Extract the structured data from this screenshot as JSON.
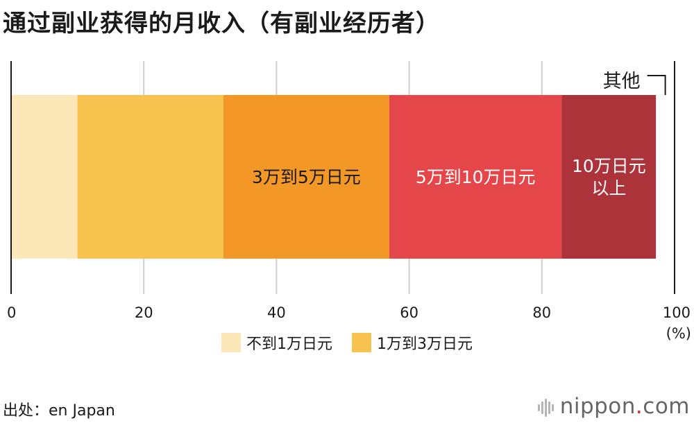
{
  "title": "通过副业获得的月收入（有副业经历者）",
  "source": "出处：en Japan",
  "brand": {
    "name": "nippon",
    "dot": ".",
    "suffix": "com"
  },
  "chart_data": {
    "type": "bar",
    "orientation": "horizontal",
    "stacked": true,
    "title": "通过副业获得的月收入（有副业经历者）",
    "unit": "(%)",
    "xlim": [
      0,
      100
    ],
    "xticks": [
      0,
      20,
      40,
      60,
      80,
      100
    ],
    "grid": true,
    "legend_position": "bottom",
    "series": [
      {
        "name": "不到1万日元",
        "value": 10.0,
        "color": "#fbe7b8"
      },
      {
        "name": "1万到3万日元",
        "value": 22.0,
        "color": "#f7c34e"
      },
      {
        "name": "3万到5万日元",
        "value": 25.0,
        "color": "#f39726"
      },
      {
        "name": "5万到10万日元",
        "value": 26.0,
        "color": "#e5464a"
      },
      {
        "name": "10万日元以上",
        "value": 14.2,
        "color": "#ad333b"
      },
      {
        "name": "其他",
        "value": 2.8,
        "color": "#ffffff"
      }
    ],
    "segment_labels": [
      {
        "series": 2,
        "lines": [
          "3万到5万日元"
        ],
        "color": "#1a1a1a"
      },
      {
        "series": 3,
        "lines": [
          "5万到10万日元"
        ],
        "color": "#ffffff"
      },
      {
        "series": 4,
        "lines": [
          "10万日元",
          "以上"
        ],
        "color": "#ffffff"
      }
    ],
    "callout": {
      "series": 5,
      "text": "其他"
    },
    "legend": [
      {
        "label": "不到1万日元",
        "color": "#fbe7b8"
      },
      {
        "label": "1万到3万日元",
        "color": "#f7c34e"
      }
    ]
  }
}
